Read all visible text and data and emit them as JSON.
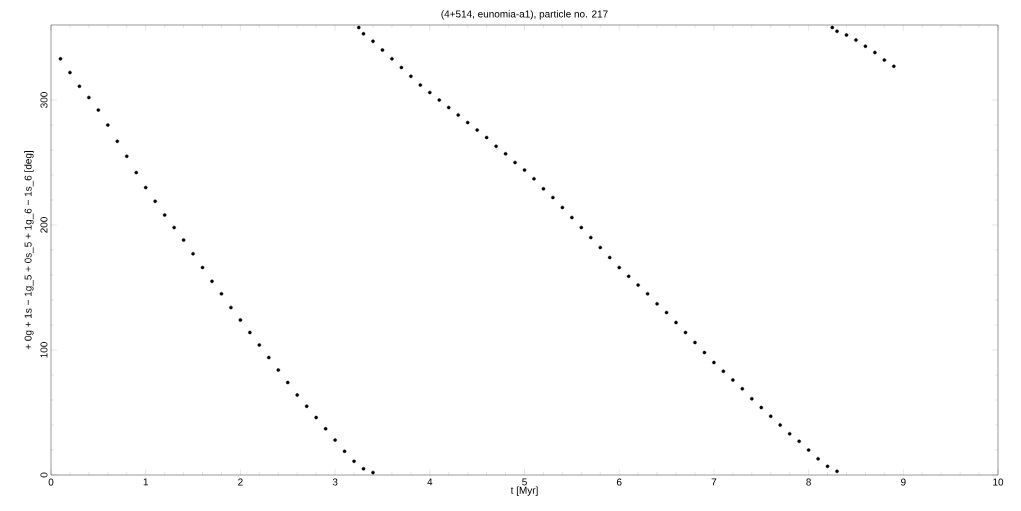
{
  "chart_data": {
    "type": "scatter",
    "title": "(4+514, eunomia-a1), particle no. 217",
    "xlabel": "t [Myr]",
    "ylabel": "+ 0g + 1s − 1g_5 + 0s_5 + 1g_6 − 1s_6 [deg]",
    "xlim": [
      0,
      10
    ],
    "ylim": [
      0,
      360
    ],
    "xticks": [
      0,
      1,
      2,
      3,
      4,
      5,
      6,
      7,
      8,
      9,
      10
    ],
    "yticks": [
      0,
      100,
      200,
      300
    ],
    "grid": false,
    "series": [
      {
        "color": "#000000",
        "x": [
          0.1,
          0.2,
          0.3,
          0.4,
          0.5,
          0.6,
          0.7,
          0.8,
          0.9,
          1.0,
          1.1,
          1.2,
          1.3,
          1.4,
          1.5,
          1.6,
          1.7,
          1.8,
          1.9,
          2.0,
          2.1,
          2.2,
          2.3,
          2.4,
          2.5,
          2.6,
          2.7,
          2.8,
          2.9,
          3.0,
          3.1,
          3.2,
          3.3,
          3.4,
          3.25,
          3.3,
          3.4,
          3.5,
          3.6,
          3.7,
          3.8,
          3.9,
          4.0,
          4.1,
          4.2,
          4.3,
          4.4,
          4.5,
          4.6,
          4.7,
          4.8,
          4.9,
          5.0,
          5.1,
          5.2,
          5.3,
          5.4,
          5.5,
          5.6,
          5.7,
          5.8,
          5.9,
          6.0,
          6.1,
          6.2,
          6.3,
          6.4,
          6.5,
          6.6,
          6.7,
          6.8,
          6.9,
          7.0,
          7.1,
          7.2,
          7.3,
          7.4,
          7.5,
          7.6,
          7.7,
          7.8,
          7.9,
          8.0,
          8.1,
          8.2,
          8.3,
          8.25,
          8.3,
          8.4,
          8.5,
          8.6,
          8.7,
          8.8,
          8.9
        ],
        "values": [
          333,
          322,
          311,
          302,
          292,
          280,
          267,
          255,
          242,
          230,
          219,
          208,
          198,
          188,
          177,
          166,
          155,
          145,
          134,
          124,
          114,
          104,
          94,
          84,
          74,
          64,
          55,
          46,
          37,
          28,
          19,
          11,
          5,
          2,
          358,
          353,
          347,
          340,
          333,
          326,
          319,
          312,
          306,
          300,
          294,
          288,
          282,
          276,
          270,
          263,
          257,
          250,
          244,
          237,
          229,
          222,
          214,
          206,
          198,
          190,
          182,
          174,
          166,
          159,
          152,
          145,
          137,
          130,
          122,
          114,
          106,
          98,
          90,
          83,
          76,
          69,
          61,
          54,
          47,
          40,
          33,
          27,
          20,
          13,
          7,
          3,
          358,
          355,
          352,
          348,
          343,
          338,
          332,
          327
        ]
      }
    ]
  }
}
